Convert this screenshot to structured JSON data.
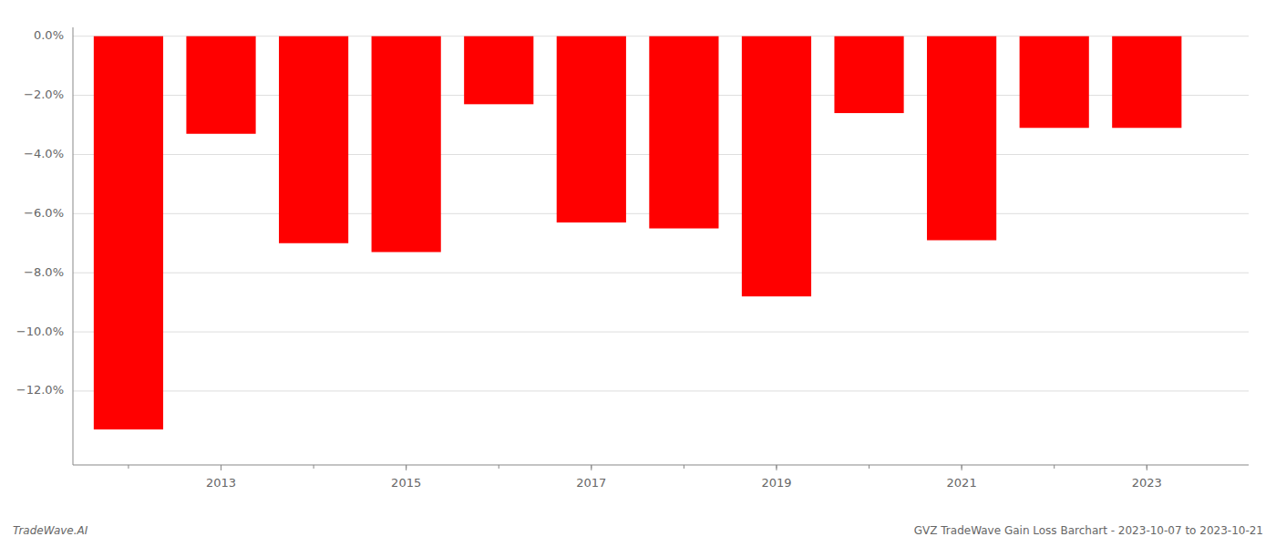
{
  "chart_data": {
    "type": "bar",
    "title": "GVZ TradeWave Gain Loss Barchart - 2023-10-07 to 2023-10-21",
    "annotations": [
      "TradeWave.AI"
    ],
    "x": [
      2012,
      2013,
      2014,
      2015,
      2016,
      2017,
      2018,
      2019,
      2020,
      2021,
      2022,
      2023
    ],
    "values": [
      -0.133,
      -0.033,
      -0.07,
      -0.073,
      -0.023,
      -0.063,
      -0.065,
      -0.088,
      -0.026,
      -0.069,
      -0.031,
      -0.031
    ],
    "color": "#ff0000",
    "xlim": [
      2011.4,
      2024.1
    ],
    "xticks": [
      2013,
      2015,
      2017,
      2019,
      2021,
      2023
    ],
    "ylim": [
      -0.145,
      0.003
    ],
    "yticks": [
      {
        "value": 0.0,
        "label": "0.0%"
      },
      {
        "value": -0.02,
        "label": "−2.0%"
      },
      {
        "value": -0.04,
        "label": "−4.0%"
      },
      {
        "value": -0.06,
        "label": "−6.0%"
      },
      {
        "value": -0.08,
        "label": "−8.0%"
      },
      {
        "value": -0.1,
        "label": "−10.0%"
      },
      {
        "value": -0.12,
        "label": "−12.0%"
      }
    ],
    "grid": true
  }
}
